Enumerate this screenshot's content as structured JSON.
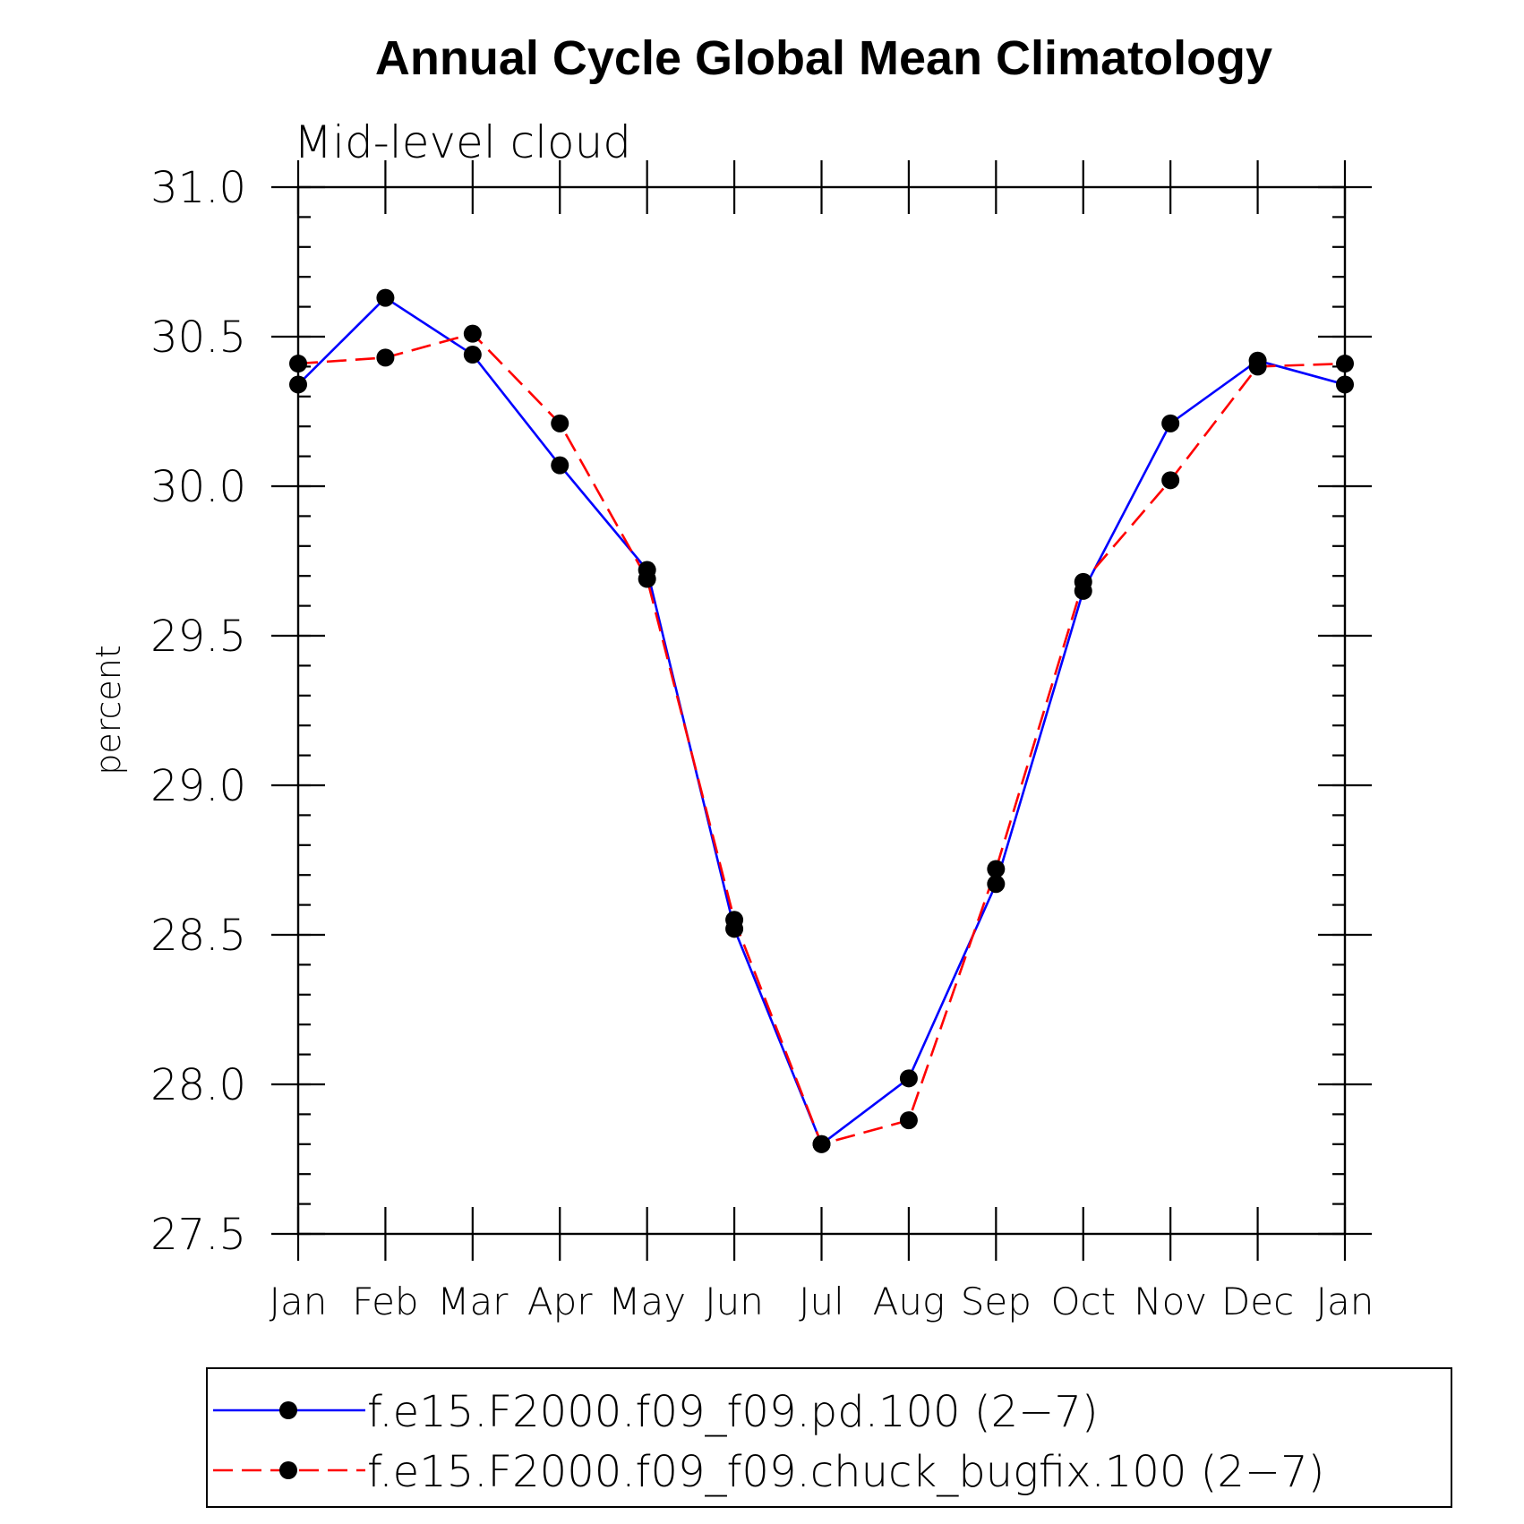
{
  "chart_data": {
    "type": "line",
    "title": "Annual Cycle Global Mean Climatology",
    "subtitle": "Mid-level cloud",
    "ylabel": "percent",
    "xlabel": "",
    "categories": [
      "Jan",
      "Feb",
      "Mar",
      "Apr",
      "May",
      "Jun",
      "Jul",
      "Aug",
      "Sep",
      "Oct",
      "Nov",
      "Dec",
      "Jan"
    ],
    "ylim": [
      27.5,
      31.0
    ],
    "yticks": [
      "27.5",
      "28.0",
      "28.5",
      "29.0",
      "29.5",
      "30.0",
      "30.5",
      "31.0"
    ],
    "minor_tick_step": 0.1,
    "grid": false,
    "legend_position": "bottom",
    "series": [
      {
        "name": "f.e15.F2000.f09_f09.pd.100 (2−7)",
        "color": "#0000ff",
        "line_style": "solid",
        "marker": "filled-circle",
        "values": [
          30.34,
          30.63,
          30.44,
          30.07,
          29.72,
          28.52,
          27.8,
          28.02,
          28.67,
          29.65,
          30.21,
          30.42,
          30.34
        ]
      },
      {
        "name": "f.e15.F2000.f09_f09.chuck_bugfix.100 (2−7)",
        "color": "#ff0000",
        "line_style": "dashed",
        "marker": "filled-circle",
        "values": [
          30.41,
          30.43,
          30.51,
          30.21,
          29.69,
          28.55,
          27.8,
          27.88,
          28.72,
          29.68,
          30.02,
          30.4,
          30.41
        ]
      }
    ]
  }
}
